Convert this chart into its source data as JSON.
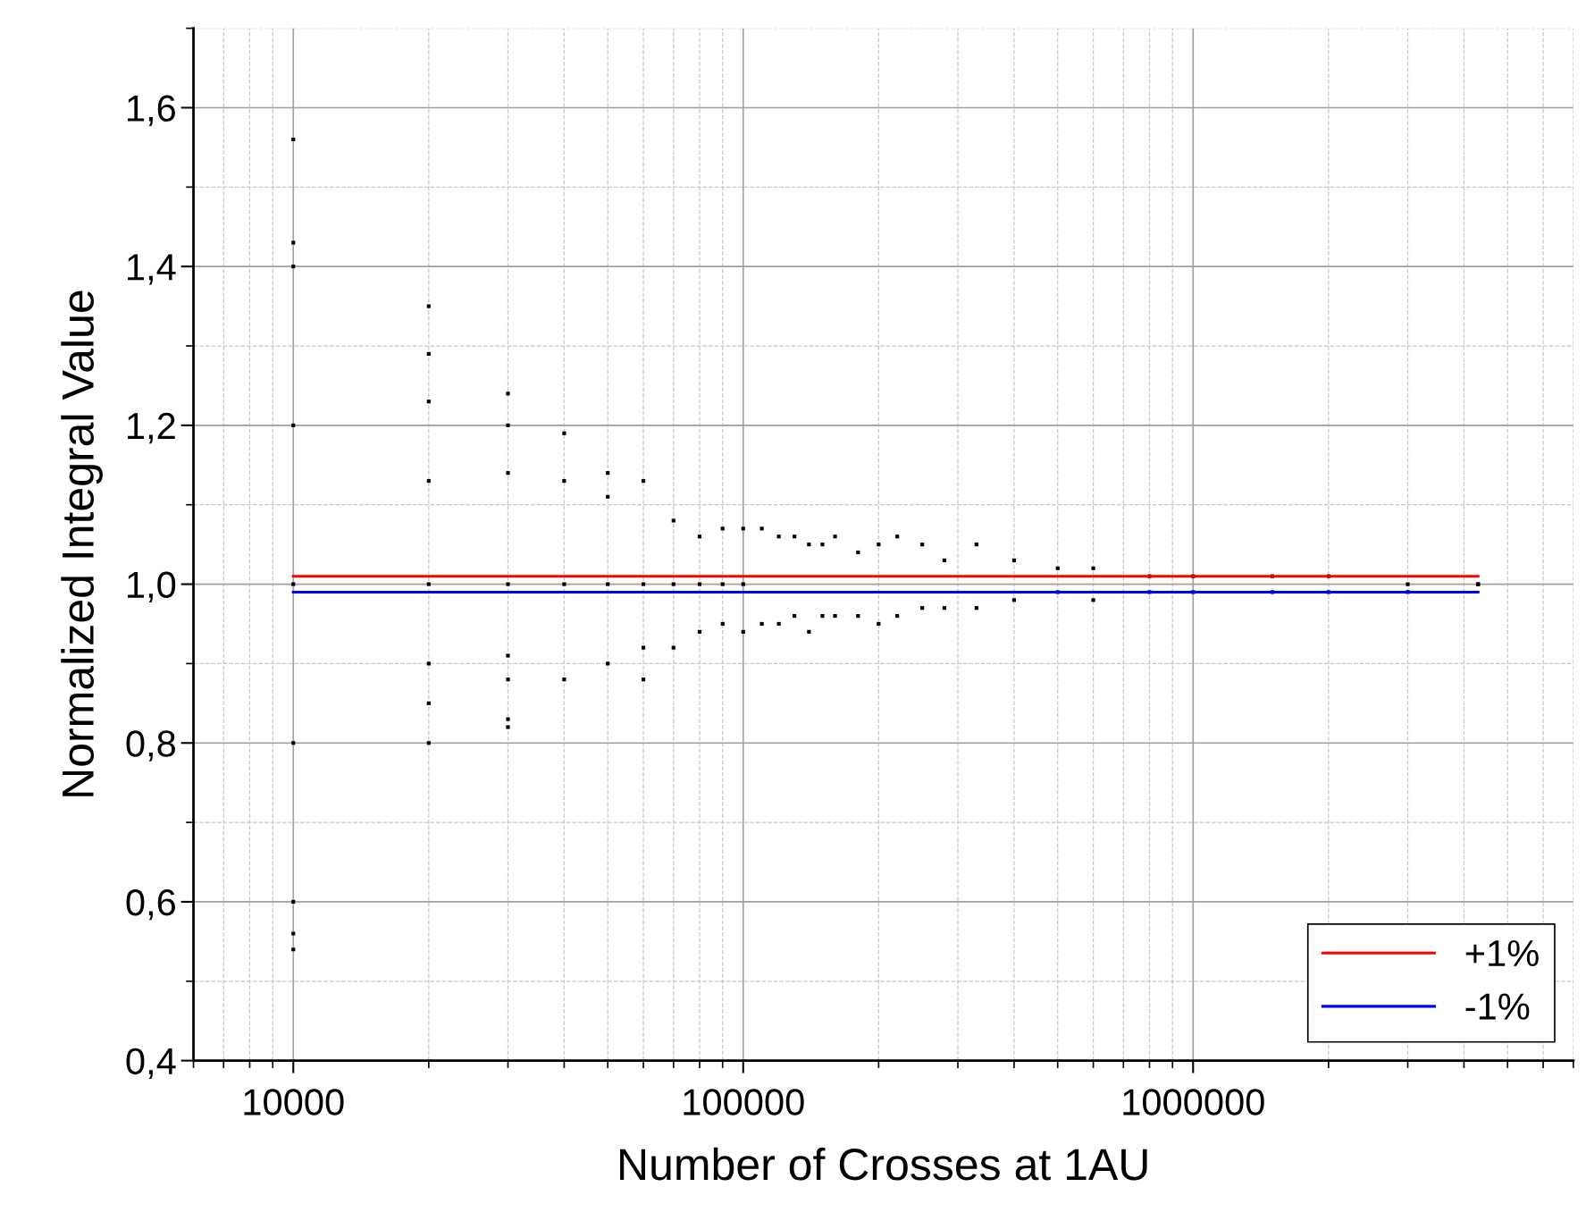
{
  "chart_data": {
    "type": "scatter",
    "xlabel": "Number of Crosses at 1AU",
    "ylabel": "Normalized Integral Value",
    "log": "x",
    "xlim": [
      6000,
      7000000
    ],
    "xticks": [
      10000,
      100000,
      1000000
    ],
    "ylim": [
      0.4,
      1.7
    ],
    "yticks": [
      {
        "value": 0.4,
        "label": "0,4"
      },
      {
        "value": 0.6,
        "label": "0,6"
      },
      {
        "value": 0.8,
        "label": "0,8"
      },
      {
        "value": 1.0,
        "label": "1,0"
      },
      {
        "value": 1.2,
        "label": "1,2"
      },
      {
        "value": 1.4,
        "label": "1,4"
      },
      {
        "value": 1.6,
        "label": "1,6"
      }
    ],
    "grid": true,
    "legend": "bottom right",
    "marker": "square",
    "series": [
      {
        "color": "#000000",
        "x": [
          10000,
          10000,
          10000,
          10000,
          10000,
          10000,
          10000,
          10000,
          10000,
          20000,
          20000,
          20000,
          20000,
          20000,
          20000,
          20000,
          20000,
          30000,
          30000,
          30000,
          30000,
          30000,
          30000,
          30000,
          30000,
          40000,
          40000,
          40000,
          40000,
          50000,
          50000,
          50000,
          50000,
          60000,
          60000,
          60000,
          60000,
          70000,
          70000,
          70000,
          80000,
          80000,
          80000,
          90000,
          90000,
          90000,
          100000,
          100000,
          100000,
          110000,
          110000,
          120000,
          120000,
          130000,
          130000,
          140000,
          140000,
          150000,
          150000,
          160000,
          160000,
          180000,
          180000,
          200000,
          200000,
          220000,
          220000,
          250000,
          250000,
          280000,
          280000,
          330000,
          330000,
          400000,
          400000,
          500000,
          500000,
          600000,
          600000,
          800000,
          800000,
          1000000,
          1000000,
          1500000,
          1500000,
          2000000,
          2000000,
          3000000,
          3000000,
          4300000,
          4300000
        ],
        "values": [
          1.56,
          1.43,
          1.4,
          1.2,
          1.0,
          0.8,
          0.6,
          0.56,
          0.54,
          1.35,
          1.29,
          1.23,
          1.13,
          1.0,
          0.9,
          0.85,
          0.8,
          1.24,
          1.2,
          1.14,
          1.0,
          0.91,
          0.88,
          0.83,
          0.82,
          1.19,
          1.13,
          1.0,
          0.88,
          1.14,
          1.11,
          1.0,
          0.9,
          1.13,
          1.0,
          0.92,
          0.88,
          1.08,
          1.0,
          0.92,
          1.06,
          1.0,
          0.94,
          1.07,
          1.0,
          0.95,
          1.07,
          1.0,
          0.94,
          1.07,
          0.95,
          1.06,
          0.95,
          1.06,
          0.96,
          1.05,
          0.94,
          1.05,
          0.96,
          1.06,
          0.96,
          1.04,
          0.96,
          1.05,
          0.95,
          1.06,
          0.96,
          1.05,
          0.97,
          1.03,
          0.97,
          1.05,
          0.97,
          1.03,
          0.98,
          1.02,
          0.99,
          1.02,
          0.98,
          1.01,
          0.99,
          1.01,
          0.99,
          1.01,
          0.99,
          1.01,
          0.99,
          1.0,
          0.99,
          1.0,
          1.0
        ]
      },
      {
        "type": "line",
        "name": "+1%",
        "color": "#ff0000",
        "marker": "none",
        "x": [
          10000,
          4300000
        ],
        "values": [
          1.01,
          1.01
        ]
      },
      {
        "type": "line",
        "name": "-1%",
        "color": "#0000ff",
        "marker": "none",
        "x": [
          10000,
          4300000
        ],
        "values": [
          0.99,
          0.99
        ]
      }
    ]
  }
}
